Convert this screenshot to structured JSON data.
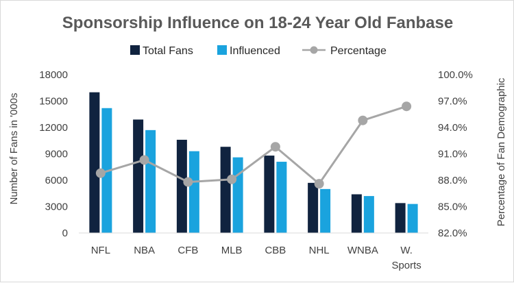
{
  "chart_data": {
    "type": "bar",
    "title": "Sponsorship Influence on 18-24 Year Old Fanbase",
    "categories": [
      [
        "NFL"
      ],
      [
        "NBA"
      ],
      [
        "CFB"
      ],
      [
        "MLB"
      ],
      [
        "CBB"
      ],
      [
        "NHL"
      ],
      [
        "WNBA"
      ],
      [
        "W.",
        "Sports"
      ]
    ],
    "series": [
      {
        "name": "Total Fans",
        "kind": "bar",
        "axis": "left",
        "color": "#10233f",
        "values": [
          16000,
          12900,
          10600,
          9800,
          8800,
          5700,
          4400,
          3400
        ]
      },
      {
        "name": "Influenced",
        "kind": "bar",
        "axis": "left",
        "color": "#1aa3de",
        "values": [
          14200,
          11700,
          9300,
          8600,
          8100,
          5000,
          4200,
          3300
        ]
      },
      {
        "name": "Percentage",
        "kind": "line",
        "axis": "right",
        "color": "#a6a6a6",
        "values": [
          88.8,
          90.3,
          87.8,
          88.1,
          91.8,
          87.6,
          94.8,
          96.4
        ]
      }
    ],
    "y_left": {
      "label": "Number of Fans in '000s",
      "min": 0,
      "max": 18000,
      "ticks": [
        "0",
        "3000",
        "6000",
        "9000",
        "12000",
        "15000",
        "18000"
      ]
    },
    "y_right": {
      "label": "Percentage of Fan Demographic",
      "min": 82.0,
      "max": 100.0,
      "ticks": [
        "82.0%",
        "85.0%",
        "88.0%",
        "91.0%",
        "94.0%",
        "97.0%",
        "100.0%"
      ]
    },
    "legend": "top",
    "grid": false
  }
}
